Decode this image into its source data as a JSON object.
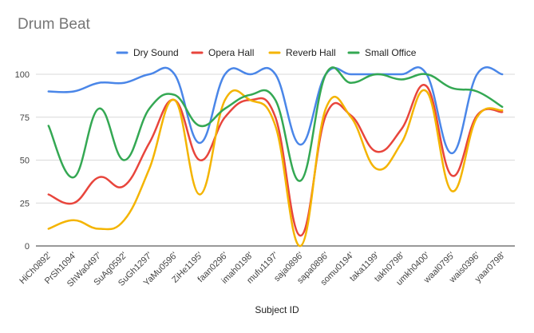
{
  "chart_data": {
    "type": "line",
    "title": "Drum Beat",
    "xlabel": "Subject ID",
    "ylabel": "",
    "ylim": [
      0,
      100
    ],
    "yticks": [
      0,
      25,
      50,
      75,
      100
    ],
    "smooth": true,
    "grid": true,
    "legend_position": "top",
    "categories": [
      "HiCh0892'",
      "PrSh1094'",
      "ShWa0497'",
      "SuAg0592'",
      "SuGh1297'",
      "YaMu0596'",
      "ZiHe1195'",
      "faan0296'",
      "imah0198'",
      "mufu1197'",
      "saja0896'",
      "sapa0896'",
      "somu0194'",
      "taka1199'",
      "takh0798'",
      "umkh0400'",
      "waal0795'",
      "wais0396'",
      "yaar0798'"
    ],
    "series": [
      {
        "name": "Dry Sound",
        "color": "#4a86e8",
        "values": [
          90,
          90,
          95,
          95,
          100,
          100,
          60,
          100,
          100,
          100,
          59,
          100,
          100,
          100,
          100,
          100,
          54,
          100,
          100
        ]
      },
      {
        "name": "Opera Hall",
        "color": "#e8453c",
        "values": [
          30,
          25,
          40,
          35,
          60,
          85,
          50,
          75,
          85,
          75,
          6,
          76,
          76,
          55,
          68,
          93,
          41,
          76,
          78
        ]
      },
      {
        "name": "Reverb Hall",
        "color": "#f4b400",
        "values": [
          10,
          15,
          10,
          15,
          45,
          85,
          30,
          85,
          85,
          70,
          0,
          80,
          75,
          45,
          60,
          90,
          32,
          75,
          79
        ]
      },
      {
        "name": "Small Office",
        "color": "#34a853",
        "values": [
          70,
          40,
          80,
          50,
          80,
          88,
          70,
          80,
          88,
          85,
          38,
          100,
          95,
          100,
          97,
          100,
          92,
          90,
          81
        ]
      }
    ]
  }
}
